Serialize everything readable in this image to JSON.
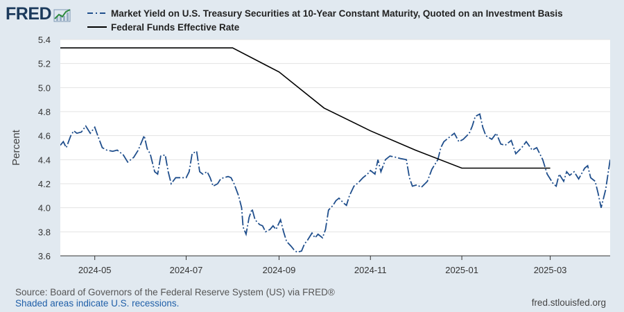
{
  "header": {
    "logo_text": "FRED",
    "logo_icon": "trend-chart-icon"
  },
  "footer": {
    "source": "Source: Board of Governors of the Federal Reserve System (US) via FRED®",
    "shaded_note": "Shaded areas indicate U.S. recessions.",
    "site": "fred.stlouisfed.org"
  },
  "colors": {
    "background": "#e1e9f0",
    "plot_background": "#ffffff",
    "treasury_series": "#1f4e8c",
    "fedfunds_series": "#000000",
    "grid": "#e3e3e3"
  },
  "chart_data": {
    "type": "line",
    "title": "",
    "xlabel": "",
    "ylabel": "Percent",
    "ylim": [
      3.6,
      5.4
    ],
    "y_ticks": [
      "3.6",
      "3.8",
      "4.0",
      "4.2",
      "4.4",
      "4.6",
      "4.8",
      "5.0",
      "5.2",
      "5.4"
    ],
    "x_range": [
      "2024-04-08",
      "2025-04-10"
    ],
    "x_ticks": [
      "2024-05",
      "2024-07",
      "2024-09",
      "2024-11",
      "2025-01",
      "2025-03"
    ],
    "grid": "horizontal",
    "legend_placement": "top",
    "series": [
      {
        "name": "Market Yield on U.S. Treasury Securities at 10-Year Constant Maturity, Quoted on an Investment Basis",
        "style": "dash-dot",
        "points": [
          [
            "2024-04-08",
            4.52
          ],
          [
            "2024-04-10",
            4.55
          ],
          [
            "2024-04-12",
            4.5
          ],
          [
            "2024-04-15",
            4.6
          ],
          [
            "2024-04-17",
            4.64
          ],
          [
            "2024-04-19",
            4.62
          ],
          [
            "2024-04-22",
            4.63
          ],
          [
            "2024-04-25",
            4.68
          ],
          [
            "2024-04-28",
            4.62
          ],
          [
            "2024-05-01",
            4.67
          ],
          [
            "2024-05-03",
            4.6
          ],
          [
            "2024-05-06",
            4.5
          ],
          [
            "2024-05-09",
            4.48
          ],
          [
            "2024-05-13",
            4.47
          ],
          [
            "2024-05-16",
            4.48
          ],
          [
            "2024-05-20",
            4.44
          ],
          [
            "2024-05-23",
            4.38
          ],
          [
            "2024-05-27",
            4.42
          ],
          [
            "2024-05-30",
            4.48
          ],
          [
            "2024-06-03",
            4.6
          ],
          [
            "2024-06-05",
            4.49
          ],
          [
            "2024-06-07",
            4.45
          ],
          [
            "2024-06-10",
            4.3
          ],
          [
            "2024-06-12",
            4.28
          ],
          [
            "2024-06-14",
            4.43
          ],
          [
            "2024-06-17",
            4.44
          ],
          [
            "2024-06-19",
            4.3
          ],
          [
            "2024-06-21",
            4.2
          ],
          [
            "2024-06-24",
            4.25
          ],
          [
            "2024-06-27",
            4.25
          ],
          [
            "2024-07-01",
            4.25
          ],
          [
            "2024-07-03",
            4.3
          ],
          [
            "2024-07-05",
            4.45
          ],
          [
            "2024-07-08",
            4.47
          ],
          [
            "2024-07-10",
            4.3
          ],
          [
            "2024-07-12",
            4.28
          ],
          [
            "2024-07-15",
            4.3
          ],
          [
            "2024-07-17",
            4.25
          ],
          [
            "2024-07-19",
            4.18
          ],
          [
            "2024-07-22",
            4.2
          ],
          [
            "2024-07-24",
            4.24
          ],
          [
            "2024-07-26",
            4.25
          ],
          [
            "2024-07-29",
            4.26
          ],
          [
            "2024-07-31",
            4.25
          ],
          [
            "2024-08-02",
            4.2
          ],
          [
            "2024-08-05",
            4.1
          ],
          [
            "2024-08-07",
            4.0
          ],
          [
            "2024-08-08",
            3.84
          ],
          [
            "2024-08-10",
            3.78
          ],
          [
            "2024-08-12",
            3.92
          ],
          [
            "2024-08-14",
            3.99
          ],
          [
            "2024-08-16",
            3.9
          ],
          [
            "2024-08-19",
            3.86
          ],
          [
            "2024-08-21",
            3.85
          ],
          [
            "2024-08-23",
            3.8
          ],
          [
            "2024-08-26",
            3.82
          ],
          [
            "2024-08-28",
            3.85
          ],
          [
            "2024-08-30",
            3.82
          ],
          [
            "2024-09-02",
            3.9
          ],
          [
            "2024-09-04",
            3.8
          ],
          [
            "2024-09-06",
            3.72
          ],
          [
            "2024-09-09",
            3.68
          ],
          [
            "2024-09-11",
            3.65
          ],
          [
            "2024-09-13",
            3.63
          ],
          [
            "2024-09-16",
            3.64
          ],
          [
            "2024-09-18",
            3.7
          ],
          [
            "2024-09-20",
            3.73
          ],
          [
            "2024-09-23",
            3.79
          ],
          [
            "2024-09-25",
            3.75
          ],
          [
            "2024-09-27",
            3.78
          ],
          [
            "2024-09-30",
            3.75
          ],
          [
            "2024-10-02",
            3.82
          ],
          [
            "2024-10-04",
            3.98
          ],
          [
            "2024-10-07",
            4.02
          ],
          [
            "2024-10-09",
            4.06
          ],
          [
            "2024-10-11",
            4.08
          ],
          [
            "2024-10-14",
            4.04
          ],
          [
            "2024-10-16",
            4.02
          ],
          [
            "2024-10-18",
            4.1
          ],
          [
            "2024-10-21",
            4.18
          ],
          [
            "2024-10-24",
            4.21
          ],
          [
            "2024-10-27",
            4.25
          ],
          [
            "2024-10-30",
            4.28
          ],
          [
            "2024-11-01",
            4.31
          ],
          [
            "2024-11-04",
            4.28
          ],
          [
            "2024-11-06",
            4.4
          ],
          [
            "2024-11-08",
            4.3
          ],
          [
            "2024-11-11",
            4.4
          ],
          [
            "2024-11-14",
            4.43
          ],
          [
            "2024-11-18",
            4.42
          ],
          [
            "2024-11-21",
            4.41
          ],
          [
            "2024-11-25",
            4.4
          ],
          [
            "2024-11-27",
            4.25
          ],
          [
            "2024-11-29",
            4.18
          ],
          [
            "2024-12-02",
            4.19
          ],
          [
            "2024-12-05",
            4.17
          ],
          [
            "2024-12-09",
            4.22
          ],
          [
            "2024-12-12",
            4.32
          ],
          [
            "2024-12-16",
            4.4
          ],
          [
            "2024-12-18",
            4.5
          ],
          [
            "2024-12-20",
            4.55
          ],
          [
            "2024-12-23",
            4.58
          ],
          [
            "2024-12-27",
            4.62
          ],
          [
            "2024-12-30",
            4.55
          ],
          [
            "2025-01-02",
            4.57
          ],
          [
            "2025-01-06",
            4.62
          ],
          [
            "2025-01-08",
            4.68
          ],
          [
            "2025-01-10",
            4.76
          ],
          [
            "2025-01-13",
            4.78
          ],
          [
            "2025-01-15",
            4.67
          ],
          [
            "2025-01-17",
            4.6
          ],
          [
            "2025-01-21",
            4.57
          ],
          [
            "2025-01-24",
            4.62
          ],
          [
            "2025-01-27",
            4.53
          ],
          [
            "2025-01-30",
            4.52
          ],
          [
            "2025-02-03",
            4.56
          ],
          [
            "2025-02-06",
            4.45
          ],
          [
            "2025-02-10",
            4.5
          ],
          [
            "2025-02-13",
            4.55
          ],
          [
            "2025-02-17",
            4.48
          ],
          [
            "2025-02-20",
            4.5
          ],
          [
            "2025-02-24",
            4.4
          ],
          [
            "2025-02-27",
            4.28
          ],
          [
            "2025-03-03",
            4.2
          ],
          [
            "2025-03-05",
            4.18
          ],
          [
            "2025-03-07",
            4.28
          ],
          [
            "2025-03-10",
            4.22
          ],
          [
            "2025-03-12",
            4.3
          ],
          [
            "2025-03-14",
            4.27
          ],
          [
            "2025-03-17",
            4.3
          ],
          [
            "2025-03-20",
            4.24
          ],
          [
            "2025-03-24",
            4.33
          ],
          [
            "2025-03-26",
            4.35
          ],
          [
            "2025-03-28",
            4.25
          ],
          [
            "2025-03-31",
            4.22
          ],
          [
            "2025-04-02",
            4.12
          ],
          [
            "2025-04-04",
            4.0
          ],
          [
            "2025-04-07",
            4.15
          ],
          [
            "2025-04-10",
            4.4
          ]
        ]
      },
      {
        "name": "Federal Funds Effective Rate",
        "style": "solid",
        "points": [
          [
            "2024-04-01",
            5.33
          ],
          [
            "2024-05-01",
            5.33
          ],
          [
            "2024-06-01",
            5.33
          ],
          [
            "2024-07-01",
            5.33
          ],
          [
            "2024-08-01",
            5.33
          ],
          [
            "2024-09-01",
            5.13
          ],
          [
            "2024-10-01",
            4.83
          ],
          [
            "2024-11-01",
            4.64
          ],
          [
            "2024-12-01",
            4.48
          ],
          [
            "2025-01-01",
            4.33
          ],
          [
            "2025-02-01",
            4.33
          ],
          [
            "2025-03-01",
            4.33
          ]
        ]
      }
    ]
  }
}
